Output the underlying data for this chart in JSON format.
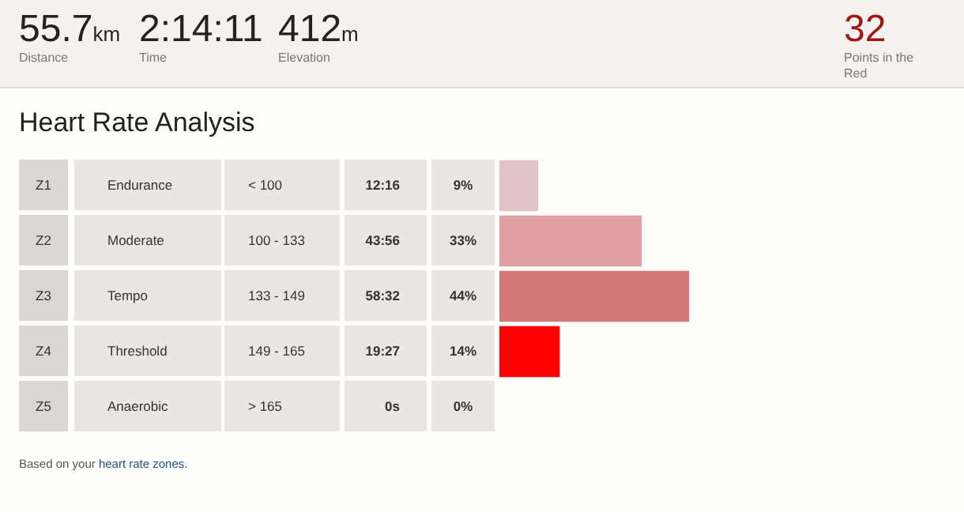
{
  "chart_data": {
    "type": "bar",
    "orientation": "horizontal",
    "title": "Heart Rate Analysis",
    "categories": [
      "Z1",
      "Z2",
      "Z3",
      "Z4",
      "Z5"
    ],
    "values": [
      9,
      33,
      44,
      14,
      0
    ],
    "colors": [
      "#e0c3c4",
      "#e0a0a1",
      "#d57879",
      "#fe0000",
      "#e0c3c4"
    ],
    "value_labels": [
      "9%",
      "33%",
      "44%",
      "14%",
      "0%"
    ],
    "annotations": [
      "55.7km",
      "Distance",
      "2:14:11",
      "Time",
      "412m",
      "Elevation",
      "32",
      "Points in the Red",
      "Based on your heart rate zones.",
      "Endurance",
      "< 100",
      "12:16",
      "Moderate",
      "100 - 133",
      "43:56",
      "Tempo",
      "133 - 149",
      "58:32",
      "Threshold",
      "149 - 165",
      "19:27",
      "Anaerobic",
      "> 165",
      "0s"
    ]
  }
}
